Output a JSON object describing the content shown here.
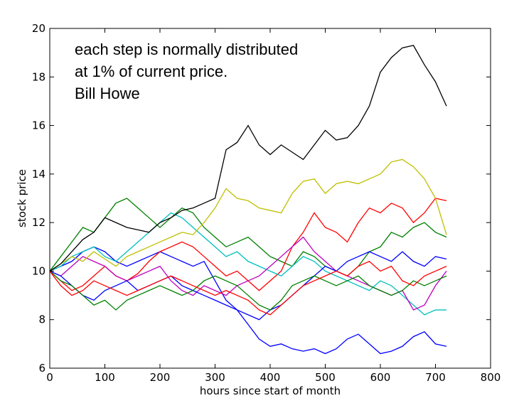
{
  "chart_data": {
    "type": "line",
    "xlabel": "hours since start of month",
    "ylabel": "stock price",
    "annotation": [
      "each step is normally distributed",
      "at 1% of current price.",
      "Bill Howe"
    ],
    "x": [
      0,
      20,
      40,
      60,
      80,
      100,
      120,
      140,
      160,
      180,
      200,
      220,
      240,
      260,
      280,
      300,
      320,
      340,
      360,
      380,
      400,
      420,
      440,
      460,
      480,
      500,
      520,
      540,
      560,
      580,
      600,
      620,
      640,
      660,
      680,
      700,
      720
    ],
    "xlim": [
      0,
      800
    ],
    "xticks": [
      0,
      100,
      200,
      300,
      400,
      500,
      600,
      700,
      800
    ],
    "ylim": [
      6,
      20
    ],
    "yticks": [
      6,
      8,
      10,
      12,
      14,
      16,
      18,
      20
    ],
    "series": [
      {
        "color": "#0000ff",
        "values": [
          10,
          10.2,
          10.4,
          10.8,
          11.0,
          10.8,
          10.4,
          10.2,
          10.4,
          10.6,
          10.8,
          10.6,
          10.4,
          10.2,
          10.4,
          9.6,
          8.8,
          8.4,
          7.8,
          7.2,
          6.9,
          7.0,
          6.8,
          6.7,
          6.8,
          6.6,
          6.8,
          7.2,
          7.4,
          7.0,
          6.6,
          6.7,
          6.9,
          7.3,
          7.5,
          7.0,
          6.9
        ]
      },
      {
        "color": "#008000",
        "values": [
          10,
          10.6,
          11.2,
          11.8,
          11.6,
          12.2,
          12.8,
          13.0,
          12.6,
          12.2,
          11.8,
          12.2,
          12.6,
          12.4,
          11.8,
          11.4,
          11.0,
          11.2,
          11.4,
          11.0,
          10.6,
          10.4,
          10.2,
          10.8,
          10.6,
          10.2,
          10.0,
          9.8,
          10.2,
          10.8,
          11.0,
          11.6,
          11.4,
          11.8,
          12.0,
          11.6,
          11.4
        ]
      },
      {
        "color": "#ff0000",
        "values": [
          10,
          9.6,
          9.2,
          9.4,
          9.8,
          10.2,
          9.8,
          9.6,
          9.9,
          10.4,
          10.8,
          11.0,
          11.2,
          11.0,
          10.6,
          10.2,
          9.8,
          10.0,
          9.6,
          9.2,
          9.6,
          10.0,
          11.0,
          11.6,
          12.4,
          11.8,
          11.6,
          11.2,
          12.0,
          12.6,
          12.4,
          12.8,
          12.6,
          12.0,
          12.4,
          13.0,
          12.9
        ]
      },
      {
        "color": "#00bfbf",
        "values": [
          10,
          10.2,
          10.6,
          10.8,
          11.0,
          10.6,
          10.4,
          10.8,
          11.2,
          11.6,
          12.0,
          12.4,
          12.2,
          11.8,
          11.4,
          11.0,
          10.6,
          10.8,
          10.4,
          10.2,
          10.0,
          9.8,
          10.2,
          10.6,
          10.4,
          10.0,
          9.8,
          9.6,
          9.4,
          9.2,
          9.6,
          9.4,
          9.0,
          8.6,
          8.2,
          8.4,
          8.4
        ]
      },
      {
        "color": "#bf00bf",
        "values": [
          10,
          9.8,
          10.2,
          10.6,
          10.4,
          10.2,
          9.8,
          9.6,
          9.8,
          10.0,
          10.2,
          9.6,
          9.2,
          9.0,
          9.4,
          9.2,
          9.0,
          9.4,
          9.6,
          9.8,
          10.2,
          10.6,
          11.0,
          11.4,
          10.8,
          10.4,
          10.0,
          9.8,
          9.6,
          9.4,
          9.2,
          9.0,
          9.2,
          8.4,
          8.6,
          9.4,
          10.0
        ]
      },
      {
        "color": "#bfbf00",
        "values": [
          10,
          10.3,
          10.6,
          10.4,
          10.8,
          10.5,
          10.2,
          10.6,
          10.8,
          11.0,
          11.2,
          11.4,
          11.6,
          11.5,
          12.0,
          12.6,
          13.4,
          13.0,
          12.9,
          12.6,
          12.5,
          12.4,
          13.2,
          13.7,
          13.8,
          13.2,
          13.6,
          13.7,
          13.6,
          13.8,
          14.0,
          14.5,
          14.6,
          14.3,
          13.8,
          13.0,
          11.5
        ]
      },
      {
        "color": "#000000",
        "values": [
          10,
          10.3,
          10.8,
          11.3,
          11.6,
          12.2,
          12.0,
          11.8,
          11.7,
          11.6,
          12.0,
          12.2,
          12.5,
          12.6,
          12.8,
          13.0,
          15.0,
          15.3,
          16.0,
          15.2,
          14.8,
          15.2,
          14.9,
          14.6,
          15.2,
          15.8,
          15.4,
          15.5,
          16.0,
          16.8,
          18.2,
          18.8,
          19.2,
          19.3,
          18.5,
          17.8,
          16.8
        ]
      },
      {
        "color": "#0000ff",
        "values": [
          10,
          9.8,
          9.4,
          9.0,
          8.8,
          9.2,
          9.4,
          9.6,
          9.2,
          9.4,
          9.6,
          9.8,
          9.4,
          9.2,
          9.0,
          8.8,
          8.6,
          8.4,
          8.2,
          8.0,
          8.4,
          8.6,
          9.0,
          9.4,
          9.8,
          10.2,
          10.0,
          10.4,
          10.6,
          10.8,
          10.6,
          10.4,
          10.8,
          10.4,
          10.2,
          10.6,
          10.5
        ]
      },
      {
        "color": "#008000",
        "values": [
          10,
          9.6,
          9.4,
          9.0,
          8.6,
          8.8,
          8.4,
          8.8,
          9.0,
          9.2,
          9.4,
          9.2,
          9.0,
          9.2,
          9.6,
          9.8,
          9.6,
          9.4,
          9.0,
          8.6,
          8.4,
          8.8,
          9.4,
          9.6,
          9.8,
          9.6,
          9.4,
          9.6,
          9.8,
          9.4,
          9.2,
          9.0,
          9.2,
          9.6,
          9.4,
          9.6,
          9.8
        ]
      },
      {
        "color": "#ff0000",
        "values": [
          10,
          9.4,
          9.0,
          9.2,
          9.6,
          9.4,
          9.2,
          9.0,
          9.2,
          9.4,
          9.6,
          9.8,
          9.6,
          9.4,
          9.2,
          9.0,
          9.2,
          9.0,
          8.8,
          8.4,
          8.2,
          8.6,
          9.0,
          9.4,
          9.6,
          9.8,
          10.0,
          9.8,
          10.2,
          10.4,
          10.0,
          10.2,
          9.6,
          9.4,
          9.8,
          10.0,
          10.2
        ]
      }
    ]
  }
}
